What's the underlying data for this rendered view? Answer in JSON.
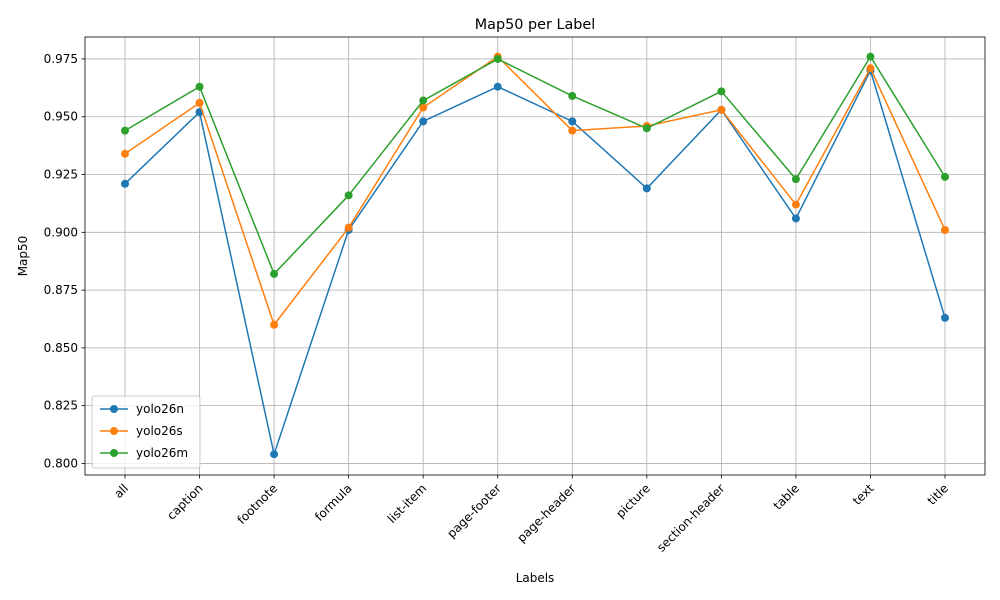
{
  "chart_data": {
    "type": "line",
    "title": "Map50 per Label",
    "xlabel": "Labels",
    "ylabel": "Map50",
    "categories": [
      "all",
      "caption",
      "footnote",
      "formula",
      "list-item",
      "page-footer",
      "page-header",
      "picture",
      "section-header",
      "table",
      "text",
      "title"
    ],
    "ylim": [
      0.795,
      0.9845
    ],
    "yticks": [
      "0.800",
      "0.825",
      "0.850",
      "0.875",
      "0.900",
      "0.925",
      "0.950",
      "0.975"
    ],
    "grid": true,
    "legend_position": "lower-left",
    "series": [
      {
        "name": "yolo26n",
        "color": "#1f77b4",
        "values": [
          0.921,
          0.952,
          0.804,
          0.901,
          0.948,
          0.963,
          0.948,
          0.919,
          0.953,
          0.906,
          0.97,
          0.863
        ]
      },
      {
        "name": "yolo26s",
        "color": "#ff7f0e",
        "values": [
          0.934,
          0.956,
          0.86,
          0.902,
          0.954,
          0.976,
          0.944,
          0.946,
          0.953,
          0.912,
          0.971,
          0.901
        ]
      },
      {
        "name": "yolo26m",
        "color": "#2ca02c",
        "values": [
          0.944,
          0.963,
          0.882,
          0.916,
          0.957,
          0.975,
          0.959,
          0.945,
          0.961,
          0.923,
          0.976,
          0.924
        ]
      }
    ]
  }
}
